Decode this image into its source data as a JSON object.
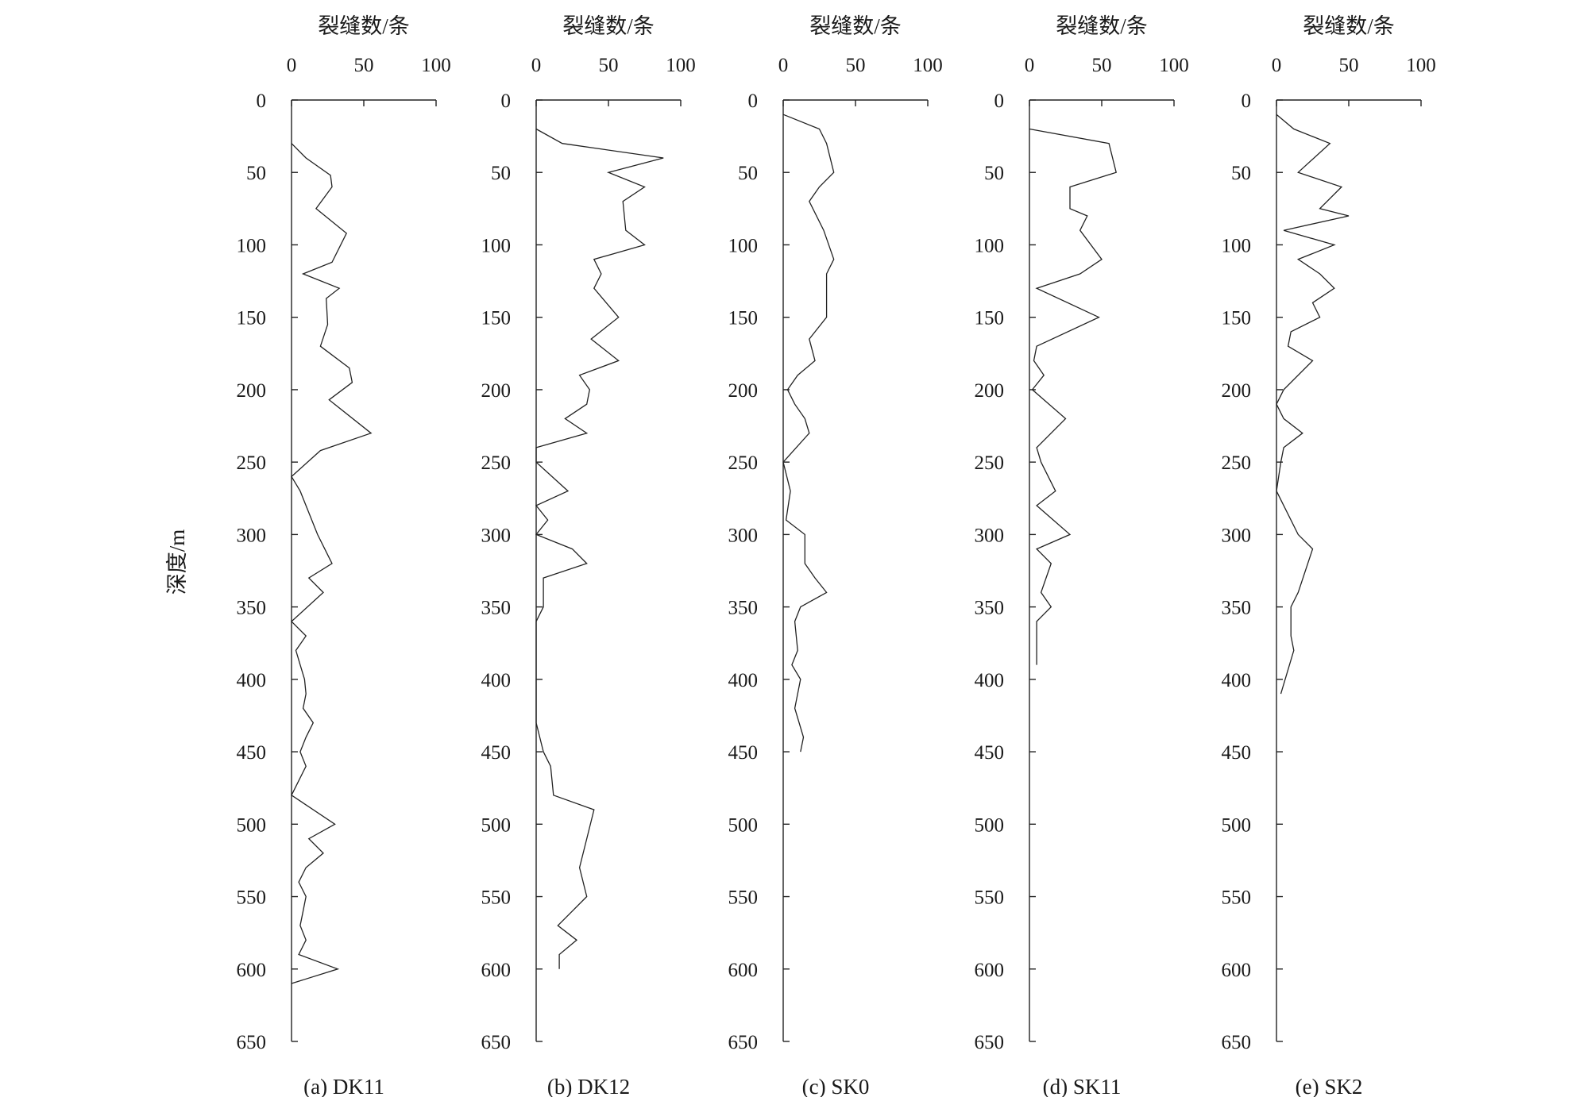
{
  "y_axis_label": "深度/m",
  "x_axis_label": "裂缝数/条",
  "chart_data": [
    {
      "type": "line",
      "caption": "(a) DK11",
      "xlabel": "裂缝数/条",
      "ylabel": "深度/m",
      "xlim": [
        0,
        100
      ],
      "ylim": [
        0,
        650
      ],
      "x_ticks": [
        "0",
        "50",
        "100"
      ],
      "y_ticks": [
        "0",
        "50",
        "100",
        "150",
        "200",
        "250",
        "300",
        "350",
        "400",
        "450",
        "500",
        "550",
        "600",
        "650"
      ],
      "x": [
        0,
        10,
        27,
        28,
        17,
        38,
        28,
        8,
        33,
        24,
        25,
        20,
        40,
        42,
        26,
        55,
        20,
        0,
        6,
        10,
        18,
        28,
        12,
        22,
        0,
        10,
        3,
        6,
        9,
        10,
        8,
        15,
        10,
        6,
        10,
        0,
        30,
        12,
        22,
        10,
        5,
        10,
        8,
        6,
        10,
        5,
        32,
        0
      ],
      "y": [
        30,
        40,
        52,
        60,
        75,
        92,
        112,
        120,
        130,
        137,
        155,
        170,
        185,
        195,
        207,
        230,
        242,
        260,
        270,
        280,
        300,
        320,
        330,
        340,
        360,
        370,
        380,
        390,
        400,
        410,
        420,
        430,
        440,
        450,
        460,
        480,
        500,
        510,
        520,
        530,
        540,
        550,
        560,
        570,
        580,
        590,
        600,
        610
      ]
    },
    {
      "type": "line",
      "caption": "(b) DK12",
      "xlabel": "裂缝数/条",
      "ylabel": "深度/m",
      "xlim": [
        0,
        100
      ],
      "ylim": [
        0,
        650
      ],
      "x_ticks": [
        "0",
        "50",
        "100"
      ],
      "y_ticks": [
        "0",
        "50",
        "100",
        "150",
        "200",
        "250",
        "300",
        "350",
        "400",
        "450",
        "500",
        "550",
        "600",
        "650"
      ],
      "x": [
        0,
        18,
        88,
        50,
        75,
        60,
        62,
        75,
        40,
        45,
        40,
        57,
        38,
        57,
        30,
        37,
        35,
        20,
        35,
        0,
        0,
        22,
        0,
        8,
        0,
        25,
        35,
        5,
        5,
        0,
        0,
        5,
        10,
        12,
        40,
        35,
        30,
        35,
        25,
        15,
        28,
        16,
        16
      ],
      "y": [
        20,
        30,
        40,
        50,
        60,
        70,
        90,
        100,
        110,
        120,
        130,
        150,
        165,
        180,
        190,
        200,
        210,
        220,
        230,
        240,
        250,
        270,
        280,
        290,
        300,
        310,
        320,
        330,
        350,
        360,
        430,
        450,
        460,
        480,
        490,
        510,
        530,
        550,
        560,
        570,
        580,
        590,
        600
      ]
    },
    {
      "type": "line",
      "caption": "(c) SK0",
      "xlabel": "裂缝数/条",
      "ylabel": "深度/m",
      "xlim": [
        0,
        100
      ],
      "ylim": [
        0,
        650
      ],
      "x_ticks": [
        "0",
        "50",
        "100"
      ],
      "y_ticks": [
        "0",
        "50",
        "100",
        "150",
        "200",
        "250",
        "300",
        "350",
        "400",
        "450",
        "500",
        "550",
        "600",
        "650"
      ],
      "x": [
        0,
        25,
        30,
        35,
        25,
        18,
        28,
        35,
        30,
        30,
        18,
        22,
        10,
        3,
        8,
        15,
        18,
        0,
        5,
        2,
        15,
        15,
        22,
        30,
        12,
        8,
        10,
        6,
        12,
        8,
        14,
        12
      ],
      "y": [
        10,
        20,
        30,
        50,
        60,
        70,
        90,
        110,
        120,
        150,
        165,
        180,
        190,
        200,
        210,
        220,
        230,
        250,
        270,
        290,
        300,
        320,
        330,
        340,
        350,
        360,
        380,
        390,
        400,
        420,
        440,
        450
      ]
    },
    {
      "type": "line",
      "caption": "(d) SK11",
      "xlabel": "裂缝数/条",
      "ylabel": "深度/m",
      "xlim": [
        0,
        100
      ],
      "ylim": [
        0,
        650
      ],
      "x_ticks": [
        "0",
        "50",
        "100"
      ],
      "y_ticks": [
        "0",
        "50",
        "100",
        "150",
        "200",
        "250",
        "300",
        "350",
        "400",
        "450",
        "500",
        "550",
        "600",
        "650"
      ],
      "x": [
        0,
        55,
        60,
        28,
        28,
        40,
        35,
        50,
        35,
        5,
        48,
        5,
        3,
        10,
        2,
        25,
        5,
        8,
        18,
        5,
        28,
        5,
        15,
        8,
        15,
        5,
        5
      ],
      "y": [
        20,
        30,
        50,
        60,
        75,
        80,
        90,
        110,
        120,
        130,
        150,
        170,
        180,
        190,
        200,
        220,
        240,
        250,
        270,
        280,
        300,
        310,
        320,
        340,
        350,
        360,
        390
      ]
    },
    {
      "type": "line",
      "caption": "(e) SK2",
      "xlabel": "裂缝数/条",
      "ylabel": "深度/m",
      "xlim": [
        0,
        100
      ],
      "ylim": [
        0,
        650
      ],
      "x_ticks": [
        "0",
        "50",
        "100"
      ],
      "y_ticks": [
        "0",
        "50",
        "100",
        "150",
        "200",
        "250",
        "300",
        "350",
        "400",
        "450",
        "500",
        "550",
        "600",
        "650"
      ],
      "x": [
        0,
        12,
        37,
        15,
        45,
        30,
        50,
        5,
        40,
        15,
        30,
        40,
        25,
        30,
        10,
        8,
        25,
        5,
        0,
        5,
        18,
        5,
        3,
        0,
        15,
        25,
        15,
        10,
        10,
        10,
        12,
        3
      ],
      "y": [
        10,
        20,
        30,
        50,
        60,
        75,
        80,
        90,
        100,
        110,
        120,
        130,
        140,
        150,
        160,
        170,
        180,
        200,
        210,
        220,
        230,
        240,
        250,
        270,
        300,
        310,
        340,
        350,
        360,
        370,
        380,
        410
      ]
    }
  ]
}
